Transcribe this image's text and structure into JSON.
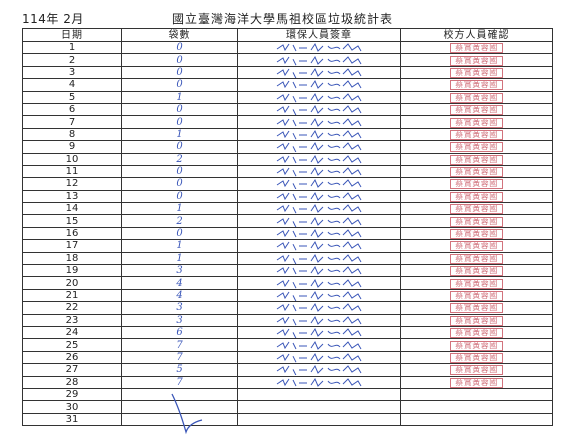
{
  "header": {
    "month": "114年 2月",
    "title": "國立臺灣海洋大學馬祖校區垃圾統計表"
  },
  "columns": [
    "日期",
    "袋數",
    "環保人員簽章",
    "校方人員確認"
  ],
  "rows": [
    {
      "date": "1",
      "bags": "0",
      "signed": true,
      "stamp": "蔡賞黃蓉國"
    },
    {
      "date": "2",
      "bags": "0",
      "signed": true,
      "stamp": "蔡賞黃蓉國"
    },
    {
      "date": "3",
      "bags": "0",
      "signed": true,
      "stamp": "蔡賞黃蓉國"
    },
    {
      "date": "4",
      "bags": "0",
      "signed": true,
      "stamp": "蔡賞黃蓉國"
    },
    {
      "date": "5",
      "bags": "1",
      "signed": true,
      "stamp": "蔡賞黃蓉國"
    },
    {
      "date": "6",
      "bags": "0",
      "signed": true,
      "stamp": "蔡賞黃蓉國"
    },
    {
      "date": "7",
      "bags": "0",
      "signed": true,
      "stamp": "蔡賞黃蓉國"
    },
    {
      "date": "8",
      "bags": "1",
      "signed": true,
      "stamp": "蔡賞黃蓉國"
    },
    {
      "date": "9",
      "bags": "0",
      "signed": true,
      "stamp": "蔡賞黃蓉國"
    },
    {
      "date": "10",
      "bags": "2",
      "signed": true,
      "stamp": "蔡賞黃蓉國"
    },
    {
      "date": "11",
      "bags": "0",
      "signed": true,
      "stamp": "蔡賞黃蓉國"
    },
    {
      "date": "12",
      "bags": "0",
      "signed": true,
      "stamp": "蔡賞黃蓉國"
    },
    {
      "date": "13",
      "bags": "0",
      "signed": true,
      "stamp": "蔡賞黃蓉國"
    },
    {
      "date": "14",
      "bags": "1",
      "signed": true,
      "stamp": "蔡賞黃蓉國"
    },
    {
      "date": "15",
      "bags": "2",
      "signed": true,
      "stamp": "蔡賞黃蓉國"
    },
    {
      "date": "16",
      "bags": "0",
      "signed": true,
      "stamp": "蔡賞黃蓉國"
    },
    {
      "date": "17",
      "bags": "1",
      "signed": true,
      "stamp": "蔡賞黃蓉國"
    },
    {
      "date": "18",
      "bags": "1",
      "signed": true,
      "stamp": "蔡賞黃蓉國"
    },
    {
      "date": "19",
      "bags": "3",
      "signed": true,
      "stamp": "蔡賞黃蓉國"
    },
    {
      "date": "20",
      "bags": "4",
      "signed": true,
      "stamp": "蔡賞黃蓉國"
    },
    {
      "date": "21",
      "bags": "4",
      "signed": true,
      "stamp": "蔡賞黃蓉國"
    },
    {
      "date": "22",
      "bags": "3",
      "signed": true,
      "stamp": "蔡賞黃蓉國"
    },
    {
      "date": "23",
      "bags": "3",
      "signed": true,
      "stamp": "蔡賞黃蓉國"
    },
    {
      "date": "24",
      "bags": "6",
      "signed": true,
      "stamp": "蔡賞黃蓉國"
    },
    {
      "date": "25",
      "bags": "7",
      "signed": true,
      "stamp": "蔡賞黃蓉國"
    },
    {
      "date": "26",
      "bags": "7",
      "signed": true,
      "stamp": "蔡賞黃蓉國"
    },
    {
      "date": "27",
      "bags": "5",
      "signed": true,
      "stamp": "蔡賞黃蓉國"
    },
    {
      "date": "28",
      "bags": "7",
      "signed": true,
      "stamp": "蔡賞黃蓉國"
    },
    {
      "date": "29",
      "bags": "",
      "signed": false,
      "stamp": ""
    },
    {
      "date": "30",
      "bags": "",
      "signed": false,
      "stamp": ""
    },
    {
      "date": "31",
      "bags": "",
      "signed": false,
      "stamp": ""
    }
  ],
  "colors": {
    "ink": "#3a56b8",
    "stamp": "#d2737d",
    "rule": "#333333"
  }
}
